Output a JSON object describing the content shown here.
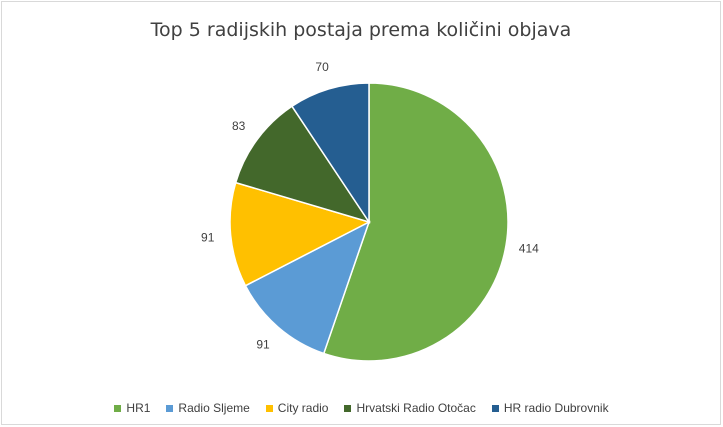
{
  "chart_data": {
    "type": "pie",
    "title": "Top 5 radijskih postaja prema količini objava",
    "categories": [
      "HR1",
      "Radio Sljeme",
      "City radio",
      "Hrvatski Radio Otočac",
      "HR radio Dubrovnik"
    ],
    "values": [
      414,
      91,
      91,
      83,
      70
    ],
    "colors": [
      "#70ad47",
      "#5b9bd5",
      "#ffc000",
      "#43682b",
      "#255e91"
    ],
    "legend_position": "bottom",
    "data_labels": "outside"
  }
}
